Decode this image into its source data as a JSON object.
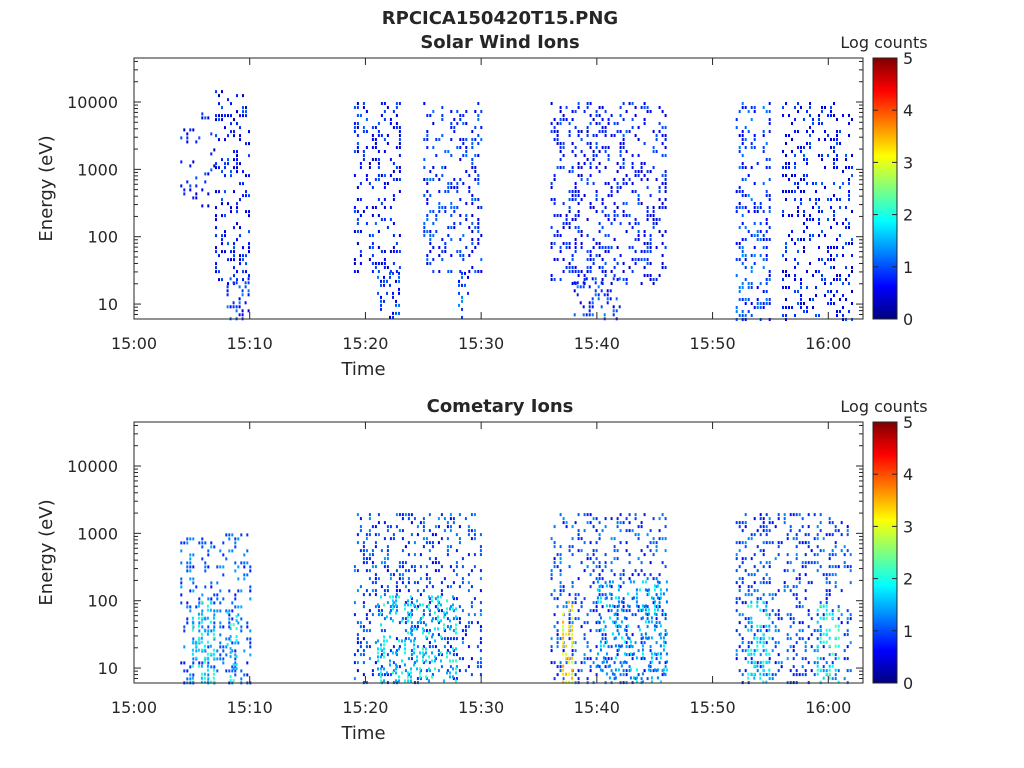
{
  "figure_title": "RPCICA150420T15.PNG",
  "colormap": [
    "#00007f",
    "#0000ff",
    "#007fff",
    "#00ffff",
    "#7fff7f",
    "#ffff00",
    "#ff7f00",
    "#ff0000",
    "#7f0000"
  ],
  "chart_data": [
    {
      "type": "heatmap",
      "title": "Solar Wind Ions",
      "xlabel": "Time",
      "ylabel": "Energy (eV)",
      "xlim": [
        "15:00",
        "16:03"
      ],
      "x_tick_labels": [
        "15:00",
        "15:10",
        "15:20",
        "15:30",
        "15:40",
        "15:50",
        "16:00"
      ],
      "ylim": [
        6,
        45000
      ],
      "y_scale": "log",
      "y_tick_labels": [
        "10",
        "100",
        "1000",
        "10000"
      ],
      "colorbar": {
        "label": "Log counts",
        "range": [
          0,
          5
        ],
        "tick_labels": [
          "0",
          "1",
          "2",
          "3",
          "4",
          "5"
        ]
      },
      "clusters": [
        {
          "t_start": "15:04",
          "t_end": "15:07",
          "e_min": 300,
          "e_max": 7000,
          "level": 0.7,
          "density": 0.35
        },
        {
          "t_start": "15:07",
          "t_end": "15:10",
          "e_min": 20,
          "e_max": 15000,
          "level": 0.7,
          "density": 0.45
        },
        {
          "t_start": "15:08",
          "t_end": "15:10",
          "e_min": 6,
          "e_max": 25,
          "level": 0.9,
          "density": 0.6
        },
        {
          "t_start": "15:19",
          "t_end": "15:23",
          "e_min": 30,
          "e_max": 10000,
          "level": 0.7,
          "density": 0.45
        },
        {
          "t_start": "15:21",
          "t_end": "15:23",
          "e_min": 6,
          "e_max": 30,
          "level": 0.9,
          "density": 0.7
        },
        {
          "t_start": "15:25",
          "t_end": "15:30",
          "e_min": 30,
          "e_max": 10000,
          "level": 0.8,
          "density": 0.45
        },
        {
          "t_start": "15:28",
          "t_end": "15:29",
          "e_min": 6,
          "e_max": 30,
          "level": 1.0,
          "density": 0.7
        },
        {
          "t_start": "15:36",
          "t_end": "15:46",
          "e_min": 20,
          "e_max": 10000,
          "level": 0.7,
          "density": 0.45
        },
        {
          "t_start": "15:38",
          "t_end": "15:42",
          "e_min": 6,
          "e_max": 25,
          "level": 0.9,
          "density": 0.6
        },
        {
          "t_start": "15:52",
          "t_end": "15:55",
          "e_min": 6,
          "e_max": 10000,
          "level": 0.9,
          "density": 0.45
        },
        {
          "t_start": "15:56",
          "t_end": "16:02",
          "e_min": 6,
          "e_max": 10000,
          "level": 0.7,
          "density": 0.45
        }
      ]
    },
    {
      "type": "heatmap",
      "title": "Cometary Ions",
      "xlabel": "Time",
      "ylabel": "Energy (eV)",
      "xlim": [
        "15:00",
        "16:03"
      ],
      "x_tick_labels": [
        "15:00",
        "15:10",
        "15:20",
        "15:30",
        "15:40",
        "15:50",
        "16:00"
      ],
      "ylim": [
        6,
        45000
      ],
      "y_scale": "log",
      "y_tick_labels": [
        "10",
        "100",
        "1000",
        "10000"
      ],
      "colorbar": {
        "label": "Log counts",
        "range": [
          0,
          5
        ],
        "tick_labels": [
          "0",
          "1",
          "2",
          "3",
          "4",
          "5"
        ]
      },
      "clusters": [
        {
          "t_start": "15:04",
          "t_end": "15:10",
          "e_min": 6,
          "e_max": 1000,
          "level": 1.1,
          "density": 0.45
        },
        {
          "t_start": "15:05",
          "t_end": "15:07",
          "e_min": 6,
          "e_max": 100,
          "level": 1.8,
          "density": 0.7
        },
        {
          "t_start": "15:08",
          "t_end": "15:09",
          "e_min": 6,
          "e_max": 70,
          "level": 1.8,
          "density": 0.7
        },
        {
          "t_start": "15:19",
          "t_end": "15:30",
          "e_min": 6,
          "e_max": 2000,
          "level": 1.0,
          "density": 0.45
        },
        {
          "t_start": "15:21",
          "t_end": "15:28",
          "e_min": 6,
          "e_max": 120,
          "level": 1.8,
          "density": 0.6
        },
        {
          "t_start": "15:36",
          "t_end": "15:46",
          "e_min": 6,
          "e_max": 2000,
          "level": 1.0,
          "density": 0.45
        },
        {
          "t_start": "15:37",
          "t_end": "15:38",
          "e_min": 6,
          "e_max": 100,
          "level": 3.2,
          "density": 0.9
        },
        {
          "t_start": "15:40",
          "t_end": "15:46",
          "e_min": 6,
          "e_max": 200,
          "level": 1.5,
          "density": 0.5
        },
        {
          "t_start": "15:52",
          "t_end": "16:02",
          "e_min": 6,
          "e_max": 2000,
          "level": 1.0,
          "density": 0.45
        },
        {
          "t_start": "15:53",
          "t_end": "15:55",
          "e_min": 6,
          "e_max": 100,
          "level": 1.8,
          "density": 0.6
        },
        {
          "t_start": "15:59",
          "t_end": "16:01",
          "e_min": 6,
          "e_max": 100,
          "level": 2.0,
          "density": 0.6
        }
      ]
    }
  ]
}
